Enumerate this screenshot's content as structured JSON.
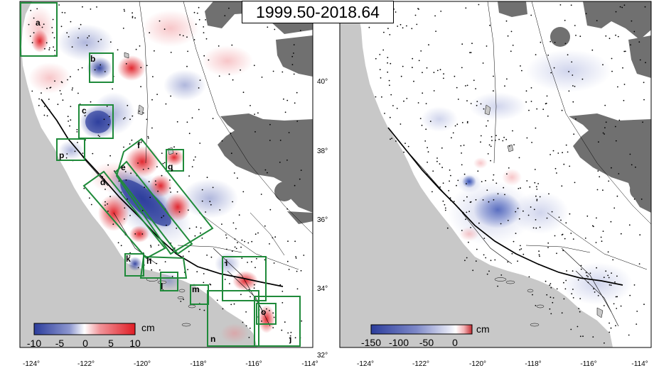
{
  "title": "1999.50-2018.64",
  "colors": {
    "ocean": "#c8c8c8",
    "nodata": "#707070",
    "land": "#ffffff",
    "box": "#1f8a3a",
    "neg": "#2c3d9c",
    "pos": "#e01d25"
  },
  "left_panel": {
    "lon_ticks": [
      "-124°",
      "-122°",
      "-120°",
      "-118°",
      "-116°",
      "-114°"
    ],
    "lat_ticks": [
      "32°",
      "34°",
      "36°",
      "38°",
      "40°"
    ],
    "colorbar": {
      "unit": "cm",
      "ticks": [
        "-10",
        "-5",
        "0",
        "5",
        "10"
      ]
    },
    "regions": [
      "a",
      "b",
      "c",
      "p",
      "f",
      "q",
      "e",
      "d",
      "k",
      "h",
      "l",
      "i",
      "m",
      "o",
      "n",
      "j"
    ]
  },
  "right_panel": {
    "lon_ticks": [
      "-124°",
      "-122°",
      "-120°",
      "-118°",
      "-116°",
      "-114°"
    ],
    "colorbar": {
      "unit": "cm",
      "ticks": [
        "-150",
        "-100",
        "-50",
        "0"
      ]
    }
  }
}
